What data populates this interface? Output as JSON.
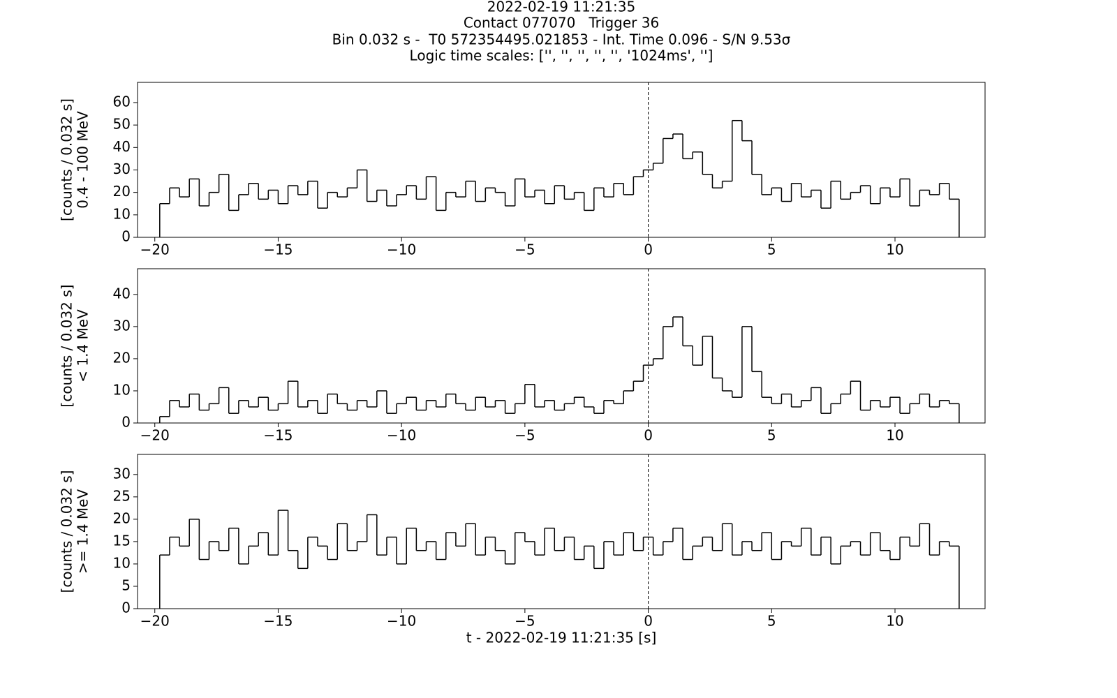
{
  "figure": {
    "title_lines": [
      "2022-02-19 11:21:35",
      "Contact 077070   Trigger 36",
      "Bin 0.032 s -  T0 572354495.021853 - Int. Time 0.096 - S/N 9.53σ",
      "Logic time scales: ['', '', '', '', '', '1024ms', '']"
    ]
  },
  "chart_data": [
    {
      "type": "step",
      "ylabel": [
        "[counts / 0.032 s]",
        "0.4 - 100 MeV"
      ],
      "color": "#000000",
      "vline": 0,
      "xlim": [
        -20.7,
        13.65
      ],
      "ylim": [
        0,
        69
      ],
      "xticks": [
        {
          "value": -20,
          "label": "−20"
        },
        {
          "value": -15,
          "label": "−15"
        },
        {
          "value": -10,
          "label": "−10"
        },
        {
          "value": -5,
          "label": "−5"
        },
        0,
        5,
        10
      ],
      "yticks": [
        0,
        10,
        20,
        30,
        40,
        50,
        60
      ],
      "x": [
        -19.8,
        -19.4,
        -19,
        -18.6,
        -18.2,
        -17.8,
        -17.4,
        -17,
        -16.6,
        -16.2,
        -15.8,
        -15.4,
        -15,
        -14.6,
        -14.2,
        -13.8,
        -13.4,
        -13,
        -12.6,
        -12.2,
        -11.8,
        -11.4,
        -11,
        -10.6,
        -10.2,
        -9.8,
        -9.4,
        -9,
        -8.6,
        -8.2,
        -7.8,
        -7.4,
        -7,
        -6.6,
        -6.2,
        -5.8,
        -5.4,
        -5,
        -4.6,
        -4.2,
        -3.8,
        -3.4,
        -3,
        -2.6,
        -2.2,
        -1.8,
        -1.4,
        -1,
        -0.6,
        -0.2,
        0.2,
        0.6,
        1,
        1.4,
        1.8,
        2.2,
        2.6,
        3,
        3.4,
        3.8,
        4.2,
        4.6,
        5,
        5.4,
        5.8,
        6.2,
        6.6,
        7,
        7.4,
        7.8,
        8.2,
        8.6,
        9,
        9.4,
        9.8,
        10.2,
        10.6,
        11,
        11.4,
        11.8,
        12.2,
        12.6
      ],
      "values": [
        15,
        22,
        18,
        26,
        14,
        20,
        28,
        12,
        19,
        24,
        17,
        21,
        15,
        23,
        19,
        25,
        13,
        20,
        18,
        22,
        30,
        16,
        21,
        14,
        19,
        23,
        17,
        27,
        12,
        20,
        18,
        25,
        16,
        22,
        20,
        14,
        26,
        18,
        21,
        15,
        23,
        17,
        20,
        12,
        22,
        18,
        24,
        19,
        27,
        30,
        33,
        44,
        46,
        35,
        38,
        28,
        22,
        25,
        52,
        43,
        28,
        19,
        22,
        16,
        24,
        18,
        21,
        13,
        25,
        17,
        20,
        23,
        15,
        22,
        18,
        26,
        14,
        21,
        19,
        24,
        17,
        0
      ]
    },
    {
      "type": "step",
      "ylabel": [
        "[counts / 0.032 s]",
        "< 1.4 MeV"
      ],
      "color": "#000000",
      "vline": 0,
      "xlim": [
        -20.7,
        13.65
      ],
      "ylim": [
        0,
        48
      ],
      "xticks": [
        {
          "value": -20,
          "label": "−20"
        },
        {
          "value": -15,
          "label": "−15"
        },
        {
          "value": -10,
          "label": "−10"
        },
        {
          "value": -5,
          "label": "−5"
        },
        0,
        5,
        10
      ],
      "yticks": [
        0,
        10,
        20,
        30,
        40
      ],
      "x": [
        -19.8,
        -19.4,
        -19,
        -18.6,
        -18.2,
        -17.8,
        -17.4,
        -17,
        -16.6,
        -16.2,
        -15.8,
        -15.4,
        -15,
        -14.6,
        -14.2,
        -13.8,
        -13.4,
        -13,
        -12.6,
        -12.2,
        -11.8,
        -11.4,
        -11,
        -10.6,
        -10.2,
        -9.8,
        -9.4,
        -9,
        -8.6,
        -8.2,
        -7.8,
        -7.4,
        -7,
        -6.6,
        -6.2,
        -5.8,
        -5.4,
        -5,
        -4.6,
        -4.2,
        -3.8,
        -3.4,
        -3,
        -2.6,
        -2.2,
        -1.8,
        -1.4,
        -1,
        -0.6,
        -0.2,
        0.2,
        0.6,
        1,
        1.4,
        1.8,
        2.2,
        2.6,
        3,
        3.4,
        3.8,
        4.2,
        4.6,
        5,
        5.4,
        5.8,
        6.2,
        6.6,
        7,
        7.4,
        7.8,
        8.2,
        8.6,
        9,
        9.4,
        9.8,
        10.2,
        10.6,
        11,
        11.4,
        11.8,
        12.2,
        12.6
      ],
      "values": [
        2,
        7,
        5,
        9,
        4,
        6,
        11,
        3,
        7,
        5,
        8,
        4,
        6,
        13,
        5,
        7,
        3,
        9,
        6,
        4,
        7,
        5,
        10,
        3,
        6,
        8,
        4,
        7,
        5,
        9,
        6,
        4,
        8,
        5,
        7,
        3,
        6,
        12,
        5,
        7,
        4,
        6,
        8,
        5,
        3,
        7,
        6,
        10,
        13,
        18,
        20,
        30,
        33,
        24,
        18,
        27,
        14,
        10,
        8,
        30,
        16,
        8,
        6,
        9,
        5,
        7,
        11,
        3,
        6,
        9,
        13,
        4,
        7,
        5,
        8,
        3,
        6,
        9,
        5,
        7,
        6,
        0
      ]
    },
    {
      "type": "step",
      "ylabel": [
        "[counts / 0.032 s]",
        ">= 1.4 MeV"
      ],
      "xlabel": "t - 2022-02-19 11:21:35 [s]",
      "color": "#000000",
      "vline": 0,
      "xlim": [
        -20.7,
        13.65
      ],
      "ylim": [
        0,
        34.5
      ],
      "xticks": [
        {
          "value": -20,
          "label": "−20"
        },
        {
          "value": -15,
          "label": "−15"
        },
        {
          "value": -10,
          "label": "−10"
        },
        {
          "value": -5,
          "label": "−5"
        },
        0,
        5,
        10
      ],
      "yticks": [
        0,
        5,
        10,
        15,
        20,
        25,
        30
      ],
      "x": [
        -19.8,
        -19.4,
        -19,
        -18.6,
        -18.2,
        -17.8,
        -17.4,
        -17,
        -16.6,
        -16.2,
        -15.8,
        -15.4,
        -15,
        -14.6,
        -14.2,
        -13.8,
        -13.4,
        -13,
        -12.6,
        -12.2,
        -11.8,
        -11.4,
        -11,
        -10.6,
        -10.2,
        -9.8,
        -9.4,
        -9,
        -8.6,
        -8.2,
        -7.8,
        -7.4,
        -7,
        -6.6,
        -6.2,
        -5.8,
        -5.4,
        -5,
        -4.6,
        -4.2,
        -3.8,
        -3.4,
        -3,
        -2.6,
        -2.2,
        -1.8,
        -1.4,
        -1,
        -0.6,
        -0.2,
        0.2,
        0.6,
        1,
        1.4,
        1.8,
        2.2,
        2.6,
        3,
        3.4,
        3.8,
        4.2,
        4.6,
        5,
        5.4,
        5.8,
        6.2,
        6.6,
        7,
        7.4,
        7.8,
        8.2,
        8.6,
        9,
        9.4,
        9.8,
        10.2,
        10.6,
        11,
        11.4,
        11.8,
        12.2,
        12.6
      ],
      "values": [
        12,
        16,
        14,
        20,
        11,
        15,
        13,
        18,
        10,
        14,
        17,
        12,
        22,
        13,
        9,
        16,
        14,
        11,
        19,
        13,
        15,
        21,
        12,
        16,
        10,
        18,
        13,
        15,
        11,
        17,
        14,
        19,
        12,
        16,
        13,
        10,
        17,
        15,
        12,
        18,
        13,
        16,
        11,
        14,
        9,
        15,
        12,
        17,
        13,
        16,
        12,
        15,
        18,
        11,
        14,
        16,
        13,
        19,
        12,
        15,
        13,
        17,
        11,
        15,
        14,
        18,
        12,
        16,
        10,
        14,
        15,
        12,
        17,
        13,
        11,
        16,
        14,
        19,
        12,
        15,
        14,
        0
      ]
    }
  ]
}
